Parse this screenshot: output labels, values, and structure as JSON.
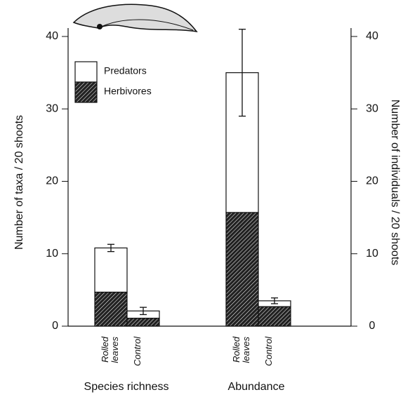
{
  "chart_data": {
    "type": "stacked_bar",
    "y_label": "Number of taxa / 20 shoots",
    "y2_label": "Number of individuals / 20 shoots",
    "groups": [
      "Species richness",
      "Abundance"
    ],
    "categories": [
      "Rolled leaves",
      "Control",
      "Rolled leaves",
      "Control"
    ],
    "series": [
      {
        "name": "Herbivores",
        "color": "#222222",
        "values": [
          4.7,
          1.1,
          15.7,
          2.7
        ]
      },
      {
        "name": "Predators",
        "color": "#ffffff",
        "values": [
          6.1,
          1.0,
          19.3,
          0.8
        ]
      }
    ],
    "errors": [
      0.5,
      0.5,
      6,
      0.4
    ],
    "ylim": [
      0,
      40
    ],
    "yticks": [
      0,
      10,
      20,
      30,
      40
    ],
    "y2lim": [
      0,
      40
    ],
    "y2ticks": [
      0,
      10,
      20,
      30,
      40
    ]
  }
}
